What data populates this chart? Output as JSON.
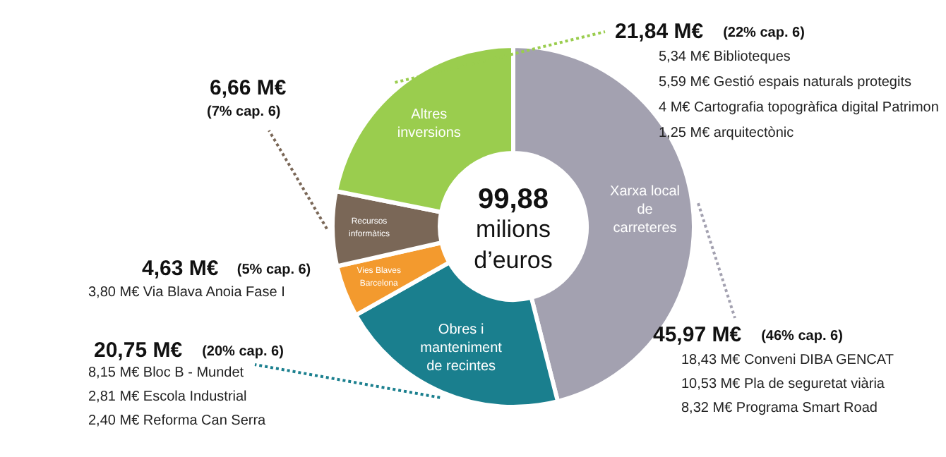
{
  "chart_data": {
    "type": "donut",
    "categories": [
      "Xarxa local de carreteres",
      "Obres i manteniment de recintes",
      "Vies Blaves Barcelona",
      "Recursos informàtics",
      "Altres inversions"
    ],
    "values": [
      45.97,
      20.75,
      4.63,
      6.66,
      21.84
    ],
    "colors": [
      "#a3a1b0",
      "#1a7f8e",
      "#f39a2e",
      "#7a6757",
      "#9acd4e"
    ],
    "value_labels": [
      "45,97 M€ (46% cap. 6)",
      "20,75 M€ (20% cap. 6)",
      "4,63 M€ (5% cap. 6)",
      "6,66 M€ (7% cap. 6)",
      "21,84 M€ (22% cap. 6)"
    ],
    "annotations": [
      "99,88 milions d’euros",
      "5,34 M€ Biblioteques",
      "5,59 M€ Gestió espais naturals protegits",
      "4 M€ Cartografia topogràfica digital Patrimon",
      "1,25 M€ arquitectònic",
      "18,43 M€ Conveni DIBA GENCAT",
      "10,53 M€ Pla de seguretat viària",
      "8,32 M€ Programa Smart Road",
      "3,80 M€ Via Blava Anoia Fase I",
      "8,15 M€ Bloc B - Mundet",
      "2,81 M€ Escola Industrial",
      "2,40 M€ Reforma Can Serra"
    ],
    "data_labels": false
  }
}
